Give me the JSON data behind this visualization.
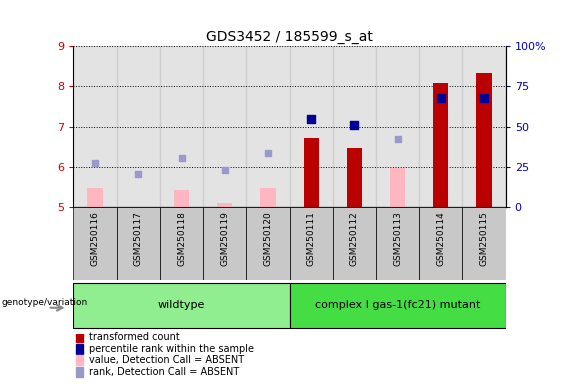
{
  "title": "GDS3452 / 185599_s_at",
  "samples": [
    "GSM250116",
    "GSM250117",
    "GSM250118",
    "GSM250119",
    "GSM250120",
    "GSM250111",
    "GSM250112",
    "GSM250113",
    "GSM250114",
    "GSM250115"
  ],
  "groups": [
    {
      "name": "wildtype",
      "indices": [
        0,
        1,
        2,
        3,
        4
      ],
      "color": "#90EE90"
    },
    {
      "name": "complex I gas-1(fc21) mutant",
      "indices": [
        5,
        6,
        7,
        8,
        9
      ],
      "color": "#44DD44"
    }
  ],
  "transformed_count_present": [
    null,
    null,
    null,
    null,
    null,
    6.72,
    6.46,
    null,
    8.09,
    8.32
  ],
  "transformed_count_absent": [
    5.48,
    null,
    5.42,
    5.12,
    5.48,
    null,
    null,
    5.98,
    null,
    null
  ],
  "percentile_rank_present": [
    null,
    null,
    null,
    null,
    null,
    7.19,
    7.04,
    null,
    7.7,
    7.7
  ],
  "percentile_rank_absent": [
    6.1,
    5.82,
    6.22,
    5.92,
    6.35,
    null,
    null,
    6.7,
    null,
    null
  ],
  "ylim": [
    5,
    9
  ],
  "yticks": [
    5,
    6,
    7,
    8,
    9
  ],
  "bar_color_present": "#BB0000",
  "bar_color_absent": "#FFB6C1",
  "dot_color_present": "#000099",
  "dot_color_absent": "#9999CC",
  "title_color": "#000000",
  "left_axis_color": "#CC0000",
  "right_axis_color": "#0000CC",
  "bar_width": 0.35,
  "dot_size": 35,
  "dot_size_absent": 25,
  "col_bg_color": "#C8C8C8",
  "legend_items": [
    {
      "color": "#BB0000",
      "label": "transformed count"
    },
    {
      "color": "#000099",
      "label": "percentile rank within the sample"
    },
    {
      "color": "#FFB6C1",
      "label": "value, Detection Call = ABSENT"
    },
    {
      "color": "#9999CC",
      "label": "rank, Detection Call = ABSENT"
    }
  ]
}
